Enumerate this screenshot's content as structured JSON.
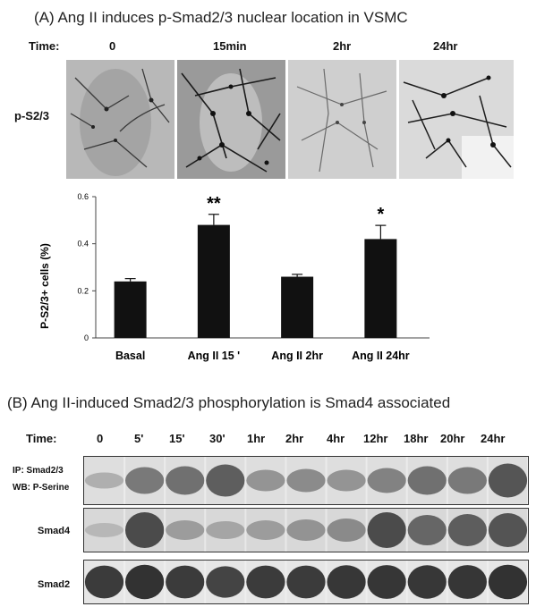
{
  "panel_a": {
    "title": "(A) Ang II induces p-Smad2/3 nuclear location in VSMC",
    "time_label": "Time:",
    "times": [
      "0",
      "15min",
      "2hr",
      "24hr"
    ],
    "row_label": "p-S2/3"
  },
  "chart_data": {
    "type": "bar",
    "categories": [
      "Basal",
      "Ang II 15 '",
      "Ang II 2hr",
      "Ang II 24hr"
    ],
    "values": [
      0.24,
      0.48,
      0.26,
      0.42
    ],
    "errors": [
      0.012,
      0.045,
      0.01,
      0.058
    ],
    "significance": [
      "",
      "**",
      "",
      "*"
    ],
    "ylabel": "P-S2/3+ cells (%)",
    "ylim": [
      0,
      0.6
    ],
    "yticks": [
      "0",
      "0.2",
      "0.4",
      "0.6"
    ],
    "bar_color": "#111111",
    "grid": false
  },
  "panel_b": {
    "title": "(B) Ang II-induced Smad2/3 phosphorylation is Smad4 associated",
    "time_label": "Time:",
    "times": [
      "0",
      "5'",
      "15'",
      "30'",
      "1hr",
      "2hr",
      "4hr",
      "12hr",
      "18hr",
      "20hr",
      "24hr"
    ],
    "blot1_label_line1": "IP: Smad2/3",
    "blot1_label_line2": "WB: P-Serine",
    "blot2_label": "Smad4",
    "blot3_label": "Smad2"
  }
}
